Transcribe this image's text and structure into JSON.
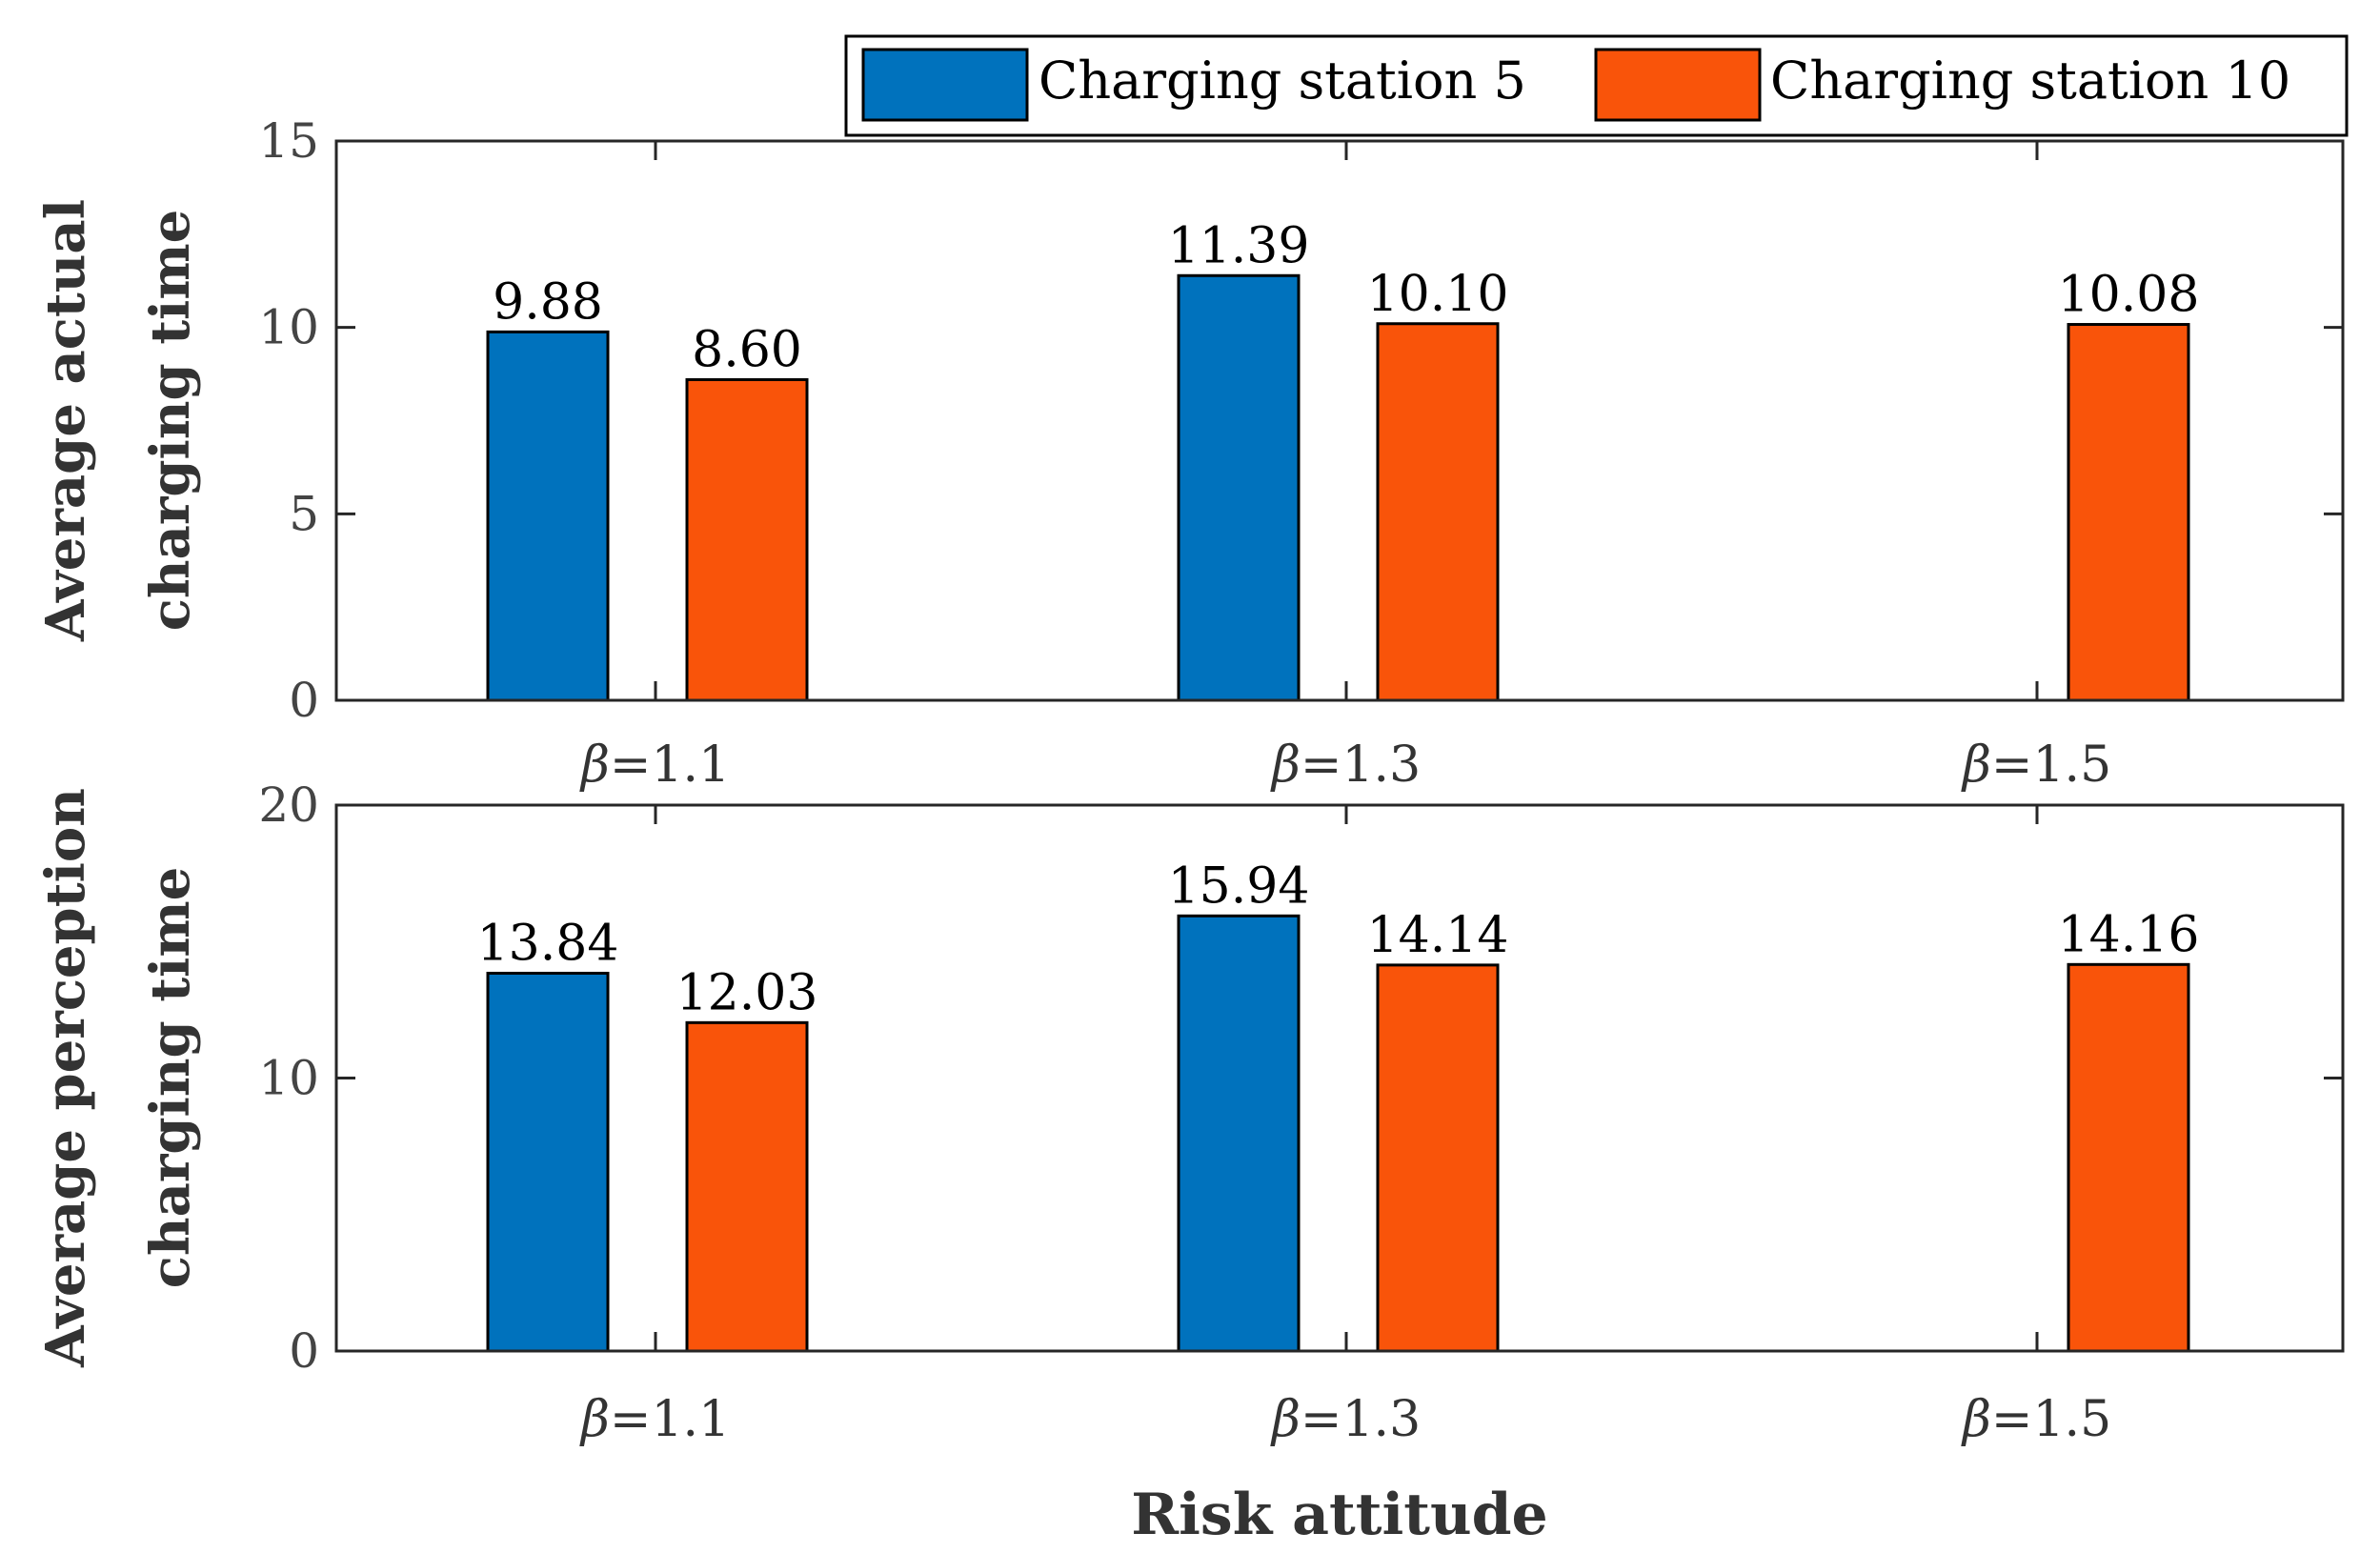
{
  "chart_data": [
    {
      "type": "bar",
      "categories": [
        "=1.1",
        "=1.3",
        "=1.5"
      ],
      "category_prefix": "β",
      "series": [
        {
          "name": "Charging station 5",
          "values": [
            9.88,
            11.39,
            null
          ],
          "labels": [
            "9.88",
            "11.39",
            ""
          ]
        },
        {
          "name": "Charging station 10",
          "values": [
            8.6,
            10.1,
            10.08
          ],
          "labels": [
            "8.60",
            "10.10",
            "10.08"
          ]
        }
      ],
      "ylabel_lines": [
        "Average actual",
        "charging time"
      ],
      "xlabel": "",
      "ylim": [
        0,
        15
      ],
      "yticks": [
        "0",
        "5",
        "10",
        "15"
      ]
    },
    {
      "type": "bar",
      "categories": [
        "=1.1",
        "=1.3",
        "=1.5"
      ],
      "category_prefix": "β",
      "series": [
        {
          "name": "Charging station 5",
          "values": [
            13.84,
            15.94,
            null
          ],
          "labels": [
            "13.84",
            "15.94",
            ""
          ]
        },
        {
          "name": "Charging station 10",
          "values": [
            12.03,
            14.14,
            14.16
          ],
          "labels": [
            "12.03",
            "14.14",
            "14.16"
          ]
        }
      ],
      "ylabel_lines": [
        "Average perception",
        "charging time"
      ],
      "xlabel": "Risk attitude",
      "ylim": [
        0,
        20
      ],
      "yticks": [
        "0",
        "10",
        "20"
      ]
    }
  ],
  "legend": {
    "placement": "top-right",
    "entries": [
      "Charging station 5",
      "Charging station 10"
    ]
  },
  "colors": {
    "series_1": "#0072BD",
    "series_2": "#F9540A"
  }
}
